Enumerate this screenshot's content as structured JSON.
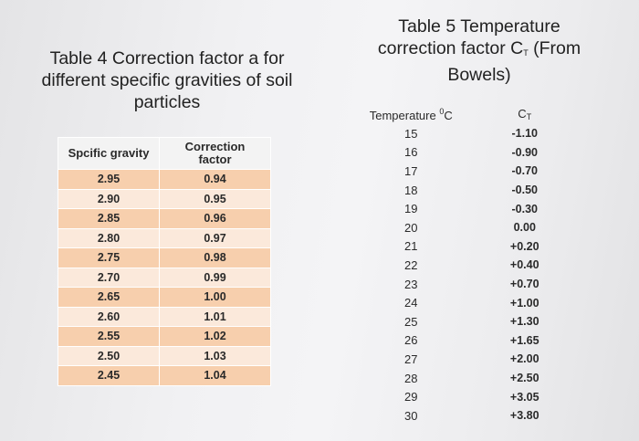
{
  "table4": {
    "title_line1": "Table 4 Correction factor a for",
    "title_line2": "different specific gravities of soil",
    "title_line3": "particles",
    "header_col1": "Spcific gravity",
    "header_col2_line1": "Correction",
    "header_col2_line2": "factor",
    "rows": [
      {
        "sg": "2.95",
        "factor": "0.94"
      },
      {
        "sg": "2.90",
        "factor": "0.95"
      },
      {
        "sg": "2.85",
        "factor": "0.96"
      },
      {
        "sg": "2.80",
        "factor": "0.97"
      },
      {
        "sg": "2.75",
        "factor": "0.98"
      },
      {
        "sg": "2.70",
        "factor": "0.99"
      },
      {
        "sg": "2.65",
        "factor": "1.00"
      },
      {
        "sg": "2.60",
        "factor": "1.01"
      },
      {
        "sg": "2.55",
        "factor": "1.02"
      },
      {
        "sg": "2.50",
        "factor": "1.03"
      },
      {
        "sg": "2.45",
        "factor": "1.04"
      }
    ]
  },
  "table5": {
    "title_line1": "Table 5 Temperature",
    "title_line2_pre": "correction factor C",
    "title_line2_sub": "T",
    "title_line2_post": " (From",
    "title_line3": "Bowels)",
    "header_col1_text": "Temperature ",
    "header_col1_sup": "0",
    "header_col1_unit": "C",
    "header_col2_text": "C",
    "header_col2_sub": "T",
    "rows": [
      {
        "temp": "15",
        "ct": "-1.10"
      },
      {
        "temp": "16",
        "ct": "-0.90"
      },
      {
        "temp": "17",
        "ct": "-0.70"
      },
      {
        "temp": "18",
        "ct": "-0.50"
      },
      {
        "temp": "19",
        "ct": "-0.30"
      },
      {
        "temp": "20",
        "ct": "0.00"
      },
      {
        "temp": "21",
        "ct": "+0.20"
      },
      {
        "temp": "22",
        "ct": "+0.40"
      },
      {
        "temp": "23",
        "ct": "+0.70"
      },
      {
        "temp": "24",
        "ct": "+1.00"
      },
      {
        "temp": "25",
        "ct": "+1.30"
      },
      {
        "temp": "26",
        "ct": "+1.65"
      },
      {
        "temp": "27",
        "ct": "+2.00"
      },
      {
        "temp": "28",
        "ct": "+2.50"
      },
      {
        "temp": "29",
        "ct": "+3.05"
      },
      {
        "temp": "30",
        "ct": "+3.80"
      }
    ]
  }
}
